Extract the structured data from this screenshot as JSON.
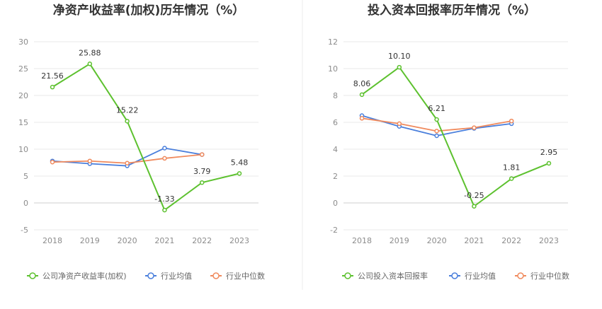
{
  "chart_data": [
    {
      "type": "line",
      "title": "净资产收益率(加权)历年情况（%）",
      "xlabel": "",
      "ylabel": "",
      "categories": [
        "2018",
        "2019",
        "2020",
        "2021",
        "2022",
        "2023"
      ],
      "ylim": [
        -5,
        30
      ],
      "yticks": [
        -5,
        0,
        5,
        10,
        15,
        20,
        25,
        30
      ],
      "grid": true,
      "legend": "bottom",
      "series": [
        {
          "name": "公司净资产收益率(加权)",
          "color": "#5dc12f",
          "values": [
            21.56,
            25.88,
            15.22,
            -1.33,
            3.79,
            5.48
          ],
          "labels": [
            "21.56",
            "25.88",
            "15.22",
            "-1.33",
            "3.79",
            "5.48"
          ]
        },
        {
          "name": "行业均值",
          "color": "#4a7fdc",
          "values": [
            7.8,
            7.3,
            6.9,
            10.2,
            9.0,
            null
          ]
        },
        {
          "name": "行业中位数",
          "color": "#f08a5d",
          "values": [
            7.6,
            7.8,
            7.4,
            8.3,
            9.0,
            null
          ]
        }
      ]
    },
    {
      "type": "line",
      "title": "投入资本回报率历年情况（%）",
      "xlabel": "",
      "ylabel": "",
      "categories": [
        "2018",
        "2019",
        "2020",
        "2021",
        "2022",
        "2023"
      ],
      "ylim": [
        -2,
        12
      ],
      "yticks": [
        -2,
        0,
        2,
        4,
        6,
        8,
        10,
        12
      ],
      "grid": true,
      "legend": "bottom",
      "series": [
        {
          "name": "公司投入资本回报率",
          "color": "#5dc12f",
          "values": [
            8.06,
            10.1,
            6.21,
            -0.25,
            1.81,
            2.95
          ],
          "labels": [
            "8.06",
            "10.10",
            "6.21",
            "-0.25",
            "1.81",
            "2.95"
          ]
        },
        {
          "name": "行业均值",
          "color": "#4a7fdc",
          "values": [
            6.5,
            5.7,
            5.0,
            5.55,
            5.9,
            null
          ]
        },
        {
          "name": "行业中位数",
          "color": "#f08a5d",
          "values": [
            6.3,
            5.9,
            5.35,
            5.6,
            6.1,
            null
          ]
        }
      ]
    }
  ]
}
